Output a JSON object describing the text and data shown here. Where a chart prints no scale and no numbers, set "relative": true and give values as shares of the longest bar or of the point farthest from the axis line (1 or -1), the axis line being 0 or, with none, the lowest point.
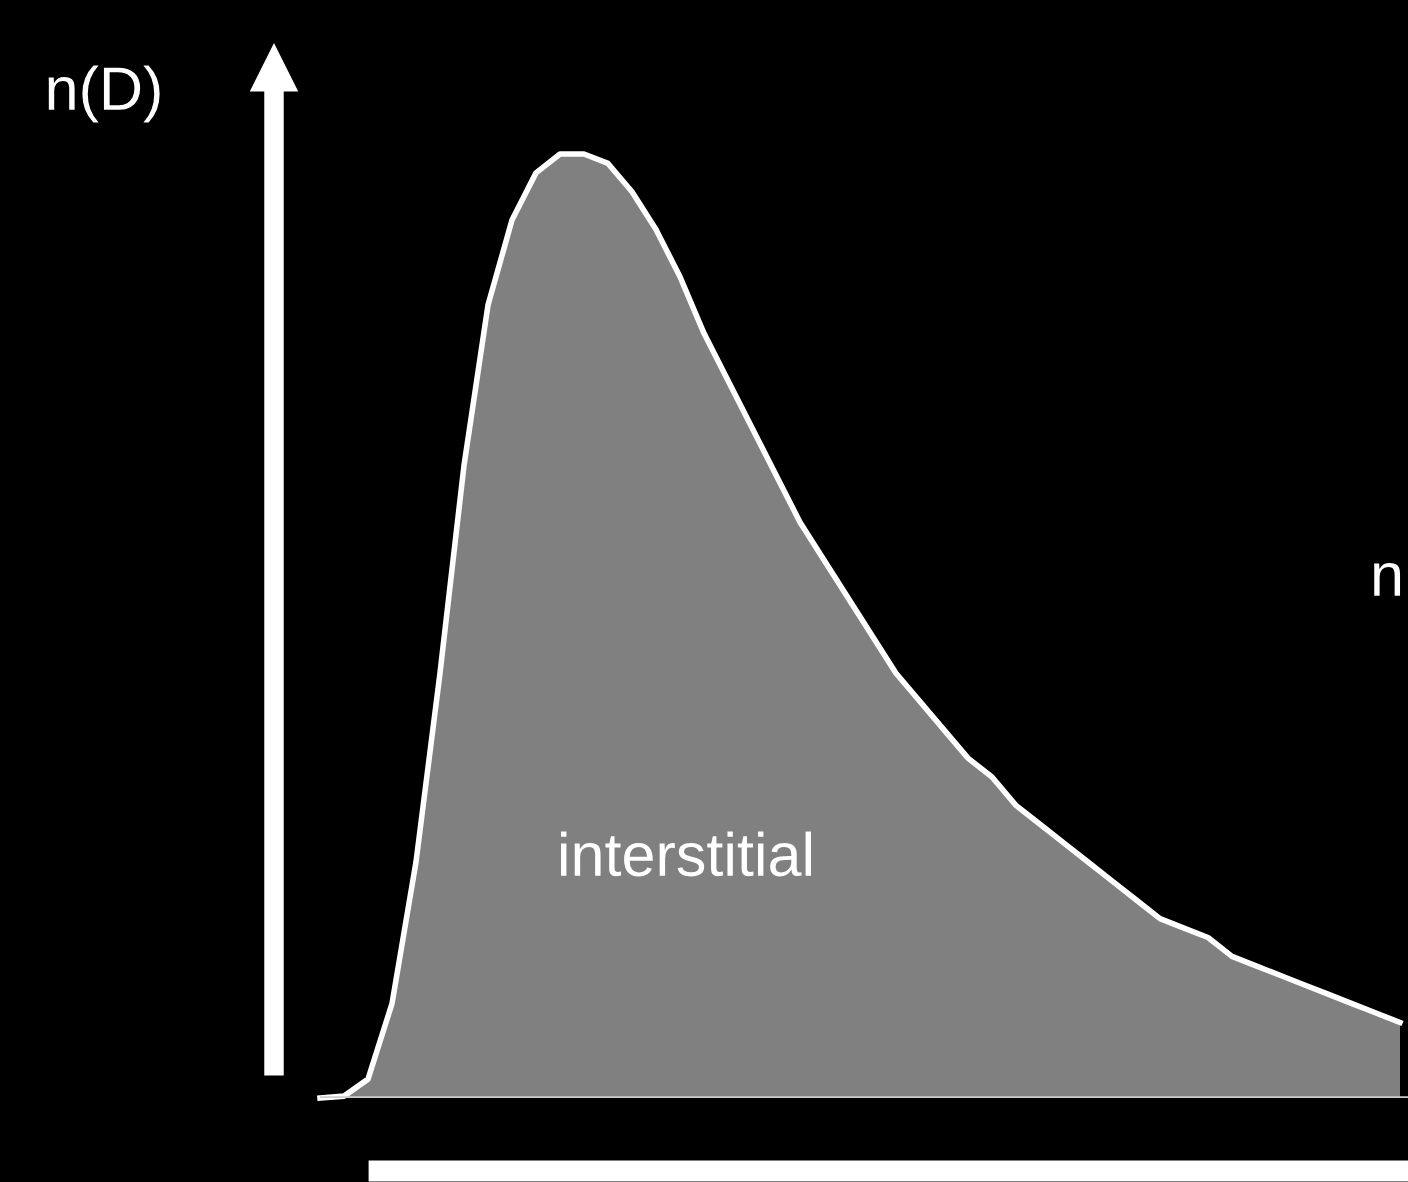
{
  "chart_data": {
    "type": "area",
    "relative": true,
    "ylabel": "n(D)",
    "annotations": [
      "interstitial",
      "n"
    ],
    "categories": [
      null,
      null,
      null,
      null,
      null,
      null,
      null,
      null,
      null,
      null,
      null,
      null,
      null,
      null,
      null,
      null,
      null,
      null,
      null,
      null,
      null,
      null,
      null,
      null,
      null,
      null,
      null,
      null,
      null,
      null,
      null,
      null,
      null,
      null,
      null,
      null,
      null,
      null,
      null,
      null,
      null,
      null,
      null,
      null,
      null,
      null
    ],
    "series": [
      {
        "color": "#808080",
        "values": [
          0,
          0.002,
          0.02,
          0.1,
          0.25,
          0.45,
          0.67,
          0.84,
          0.93,
          0.98,
          1.0,
          1.0,
          0.99,
          0.96,
          0.92,
          0.87,
          0.81,
          0.76,
          0.71,
          0.66,
          0.61,
          0.57,
          0.53,
          0.49,
          0.45,
          0.42,
          0.39,
          0.36,
          0.34,
          0.31,
          0.29,
          0.27,
          0.25,
          0.23,
          0.21,
          0.19,
          0.18,
          0.17,
          0.15,
          0.14,
          0.13,
          0.12,
          0.11,
          0.1,
          0.09,
          0.08
        ]
      }
    ],
    "legend": false
  }
}
